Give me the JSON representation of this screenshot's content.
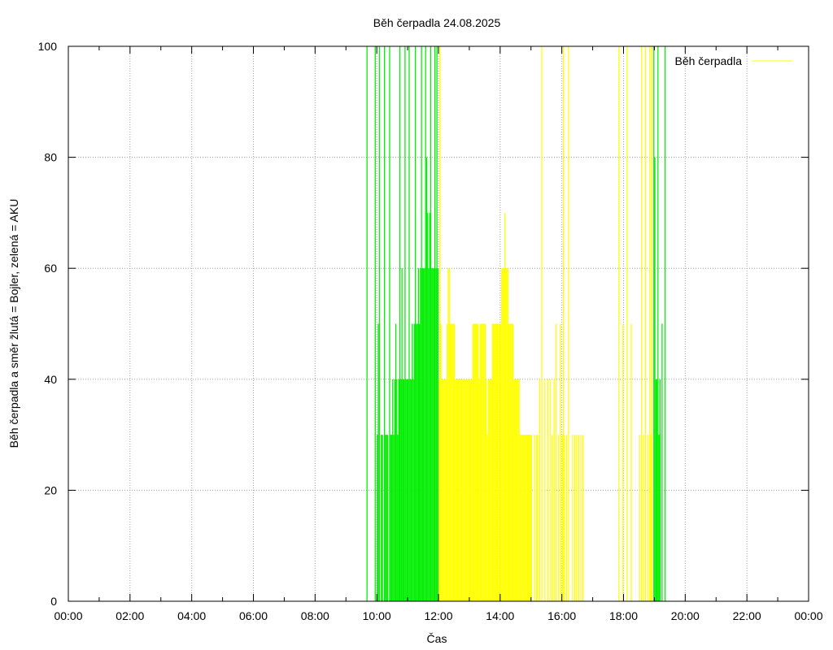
{
  "chart_data": {
    "type": "bar",
    "title": "Běh čerpadla 24.08.2025",
    "xlabel": "Čas",
    "ylabel": "Běh čerpadla a směr žlutá = Bojler, zelená = AKU",
    "xlim": [
      "00:00",
      "24:00"
    ],
    "ylim": [
      0,
      100
    ],
    "x_ticks": [
      "00:00",
      "02:00",
      "04:00",
      "06:00",
      "08:00",
      "10:00",
      "12:00",
      "14:00",
      "16:00",
      "18:00",
      "20:00",
      "22:00",
      "00:00"
    ],
    "y_ticks": [
      0,
      20,
      40,
      60,
      80,
      100
    ],
    "grid": true,
    "legend": {
      "position": "top-right",
      "entries": [
        "Běh čerpadla"
      ]
    },
    "colors": {
      "aku": "#00ee00",
      "bojler": "#ffff00",
      "legend_line": "#ffff00"
    },
    "series": [
      {
        "color_key": "aku",
        "points": [
          [
            "09:40",
            100
          ],
          [
            "09:56",
            100
          ],
          [
            "10:00",
            30
          ],
          [
            "10:02",
            50
          ],
          [
            "10:04",
            100
          ],
          [
            "10:08",
            30
          ],
          [
            "10:10",
            30
          ],
          [
            "10:14",
            100
          ],
          [
            "10:16",
            30
          ],
          [
            "10:18",
            30
          ],
          [
            "10:20",
            30
          ],
          [
            "10:24",
            100
          ],
          [
            "10:26",
            30
          ],
          [
            "10:28",
            30
          ],
          [
            "10:30",
            40
          ],
          [
            "10:32",
            30
          ],
          [
            "10:34",
            40
          ],
          [
            "10:36",
            50
          ],
          [
            "10:38",
            40
          ],
          [
            "10:40",
            30
          ],
          [
            "10:42",
            40
          ],
          [
            "10:44",
            100
          ],
          [
            "10:46",
            40
          ],
          [
            "10:48",
            60
          ],
          [
            "10:50",
            40
          ],
          [
            "10:52",
            40
          ],
          [
            "10:54",
            100
          ],
          [
            "10:56",
            40
          ],
          [
            "10:58",
            40
          ],
          [
            "11:00",
            40
          ],
          [
            "11:02",
            100
          ],
          [
            "11:04",
            40
          ],
          [
            "11:06",
            40
          ],
          [
            "11:08",
            50
          ],
          [
            "11:10",
            40
          ],
          [
            "11:12",
            50
          ],
          [
            "11:14",
            100
          ],
          [
            "11:16",
            50
          ],
          [
            "11:18",
            50
          ],
          [
            "11:20",
            60
          ],
          [
            "11:22",
            50
          ],
          [
            "11:24",
            60
          ],
          [
            "11:26",
            100
          ],
          [
            "11:28",
            60
          ],
          [
            "11:30",
            60
          ],
          [
            "11:32",
            60
          ],
          [
            "11:34",
            100
          ],
          [
            "11:36",
            80
          ],
          [
            "11:38",
            70
          ],
          [
            "11:40",
            60
          ],
          [
            "11:42",
            70
          ],
          [
            "11:44",
            100
          ],
          [
            "11:46",
            60
          ],
          [
            "11:48",
            60
          ],
          [
            "11:50",
            60
          ],
          [
            "11:52",
            100
          ],
          [
            "11:54",
            60
          ],
          [
            "11:56",
            100
          ],
          [
            "11:58",
            60
          ],
          [
            "18:58",
            100
          ],
          [
            "19:00",
            80
          ],
          [
            "19:02",
            40
          ],
          [
            "19:04",
            40
          ],
          [
            "19:06",
            100
          ],
          [
            "19:08",
            30
          ],
          [
            "19:10",
            40
          ],
          [
            "19:14",
            50
          ],
          [
            "19:20",
            100
          ]
        ]
      },
      {
        "color_key": "bojler",
        "points": [
          [
            "12:00",
            40
          ],
          [
            "12:02",
            100
          ],
          [
            "12:04",
            50
          ],
          [
            "12:06",
            40
          ],
          [
            "12:08",
            40
          ],
          [
            "12:10",
            40
          ],
          [
            "12:12",
            40
          ],
          [
            "12:14",
            40
          ],
          [
            "12:16",
            50
          ],
          [
            "12:18",
            60
          ],
          [
            "12:20",
            60
          ],
          [
            "12:22",
            50
          ],
          [
            "12:24",
            50
          ],
          [
            "12:26",
            50
          ],
          [
            "12:28",
            50
          ],
          [
            "12:30",
            50
          ],
          [
            "12:32",
            40
          ],
          [
            "12:34",
            40
          ],
          [
            "12:36",
            40
          ],
          [
            "12:38",
            40
          ],
          [
            "12:40",
            40
          ],
          [
            "12:42",
            40
          ],
          [
            "12:44",
            40
          ],
          [
            "12:46",
            40
          ],
          [
            "12:48",
            40
          ],
          [
            "12:50",
            40
          ],
          [
            "12:52",
            40
          ],
          [
            "12:54",
            40
          ],
          [
            "12:56",
            40
          ],
          [
            "12:58",
            40
          ],
          [
            "13:00",
            40
          ],
          [
            "13:02",
            40
          ],
          [
            "13:04",
            40
          ],
          [
            "13:06",
            50
          ],
          [
            "13:08",
            50
          ],
          [
            "13:10",
            50
          ],
          [
            "13:12",
            50
          ],
          [
            "13:14",
            50
          ],
          [
            "13:16",
            50
          ],
          [
            "13:18",
            40
          ],
          [
            "13:20",
            50
          ],
          [
            "13:22",
            50
          ],
          [
            "13:24",
            50
          ],
          [
            "13:26",
            50
          ],
          [
            "13:28",
            50
          ],
          [
            "13:30",
            50
          ],
          [
            "13:32",
            40
          ],
          [
            "13:34",
            30
          ],
          [
            "13:36",
            40
          ],
          [
            "13:38",
            40
          ],
          [
            "13:40",
            40
          ],
          [
            "13:42",
            40
          ],
          [
            "13:44",
            50
          ],
          [
            "13:46",
            50
          ],
          [
            "13:48",
            50
          ],
          [
            "13:50",
            50
          ],
          [
            "13:52",
            50
          ],
          [
            "13:54",
            50
          ],
          [
            "13:56",
            50
          ],
          [
            "13:58",
            50
          ],
          [
            "14:00",
            50
          ],
          [
            "14:02",
            60
          ],
          [
            "14:04",
            60
          ],
          [
            "14:06",
            60
          ],
          [
            "14:08",
            70
          ],
          [
            "14:10",
            60
          ],
          [
            "14:12",
            60
          ],
          [
            "14:14",
            60
          ],
          [
            "14:16",
            50
          ],
          [
            "14:18",
            50
          ],
          [
            "14:20",
            50
          ],
          [
            "14:22",
            50
          ],
          [
            "14:24",
            50
          ],
          [
            "14:26",
            40
          ],
          [
            "14:28",
            40
          ],
          [
            "14:30",
            40
          ],
          [
            "14:32",
            40
          ],
          [
            "14:34",
            40
          ],
          [
            "14:36",
            40
          ],
          [
            "14:38",
            30
          ],
          [
            "14:40",
            30
          ],
          [
            "14:42",
            30
          ],
          [
            "14:44",
            30
          ],
          [
            "14:46",
            30
          ],
          [
            "14:48",
            30
          ],
          [
            "14:50",
            30
          ],
          [
            "14:52",
            30
          ],
          [
            "14:54",
            30
          ],
          [
            "14:56",
            30
          ],
          [
            "14:58",
            30
          ],
          [
            "15:00",
            30
          ],
          [
            "15:06",
            30
          ],
          [
            "15:10",
            30
          ],
          [
            "15:12",
            30
          ],
          [
            "15:16",
            40
          ],
          [
            "15:20",
            100
          ],
          [
            "15:26",
            40
          ],
          [
            "15:32",
            40
          ],
          [
            "15:36",
            40
          ],
          [
            "15:40",
            30
          ],
          [
            "15:44",
            40
          ],
          [
            "15:48",
            50
          ],
          [
            "15:52",
            30
          ],
          [
            "15:56",
            50
          ],
          [
            "16:00",
            30
          ],
          [
            "16:02",
            100
          ],
          [
            "16:04",
            30
          ],
          [
            "16:08",
            30
          ],
          [
            "16:12",
            100
          ],
          [
            "16:20",
            30
          ],
          [
            "16:24",
            30
          ],
          [
            "16:28",
            30
          ],
          [
            "16:32",
            30
          ],
          [
            "16:36",
            30
          ],
          [
            "16:40",
            30
          ],
          [
            "17:50",
            100
          ],
          [
            "17:58",
            50
          ],
          [
            "18:06",
            100
          ],
          [
            "18:14",
            50
          ],
          [
            "18:30",
            30
          ],
          [
            "18:34",
            100
          ],
          [
            "18:38",
            30
          ],
          [
            "18:42",
            100
          ],
          [
            "18:46",
            30
          ],
          [
            "18:50",
            100
          ],
          [
            "18:52",
            30
          ],
          [
            "18:54",
            100
          ]
        ]
      }
    ]
  }
}
